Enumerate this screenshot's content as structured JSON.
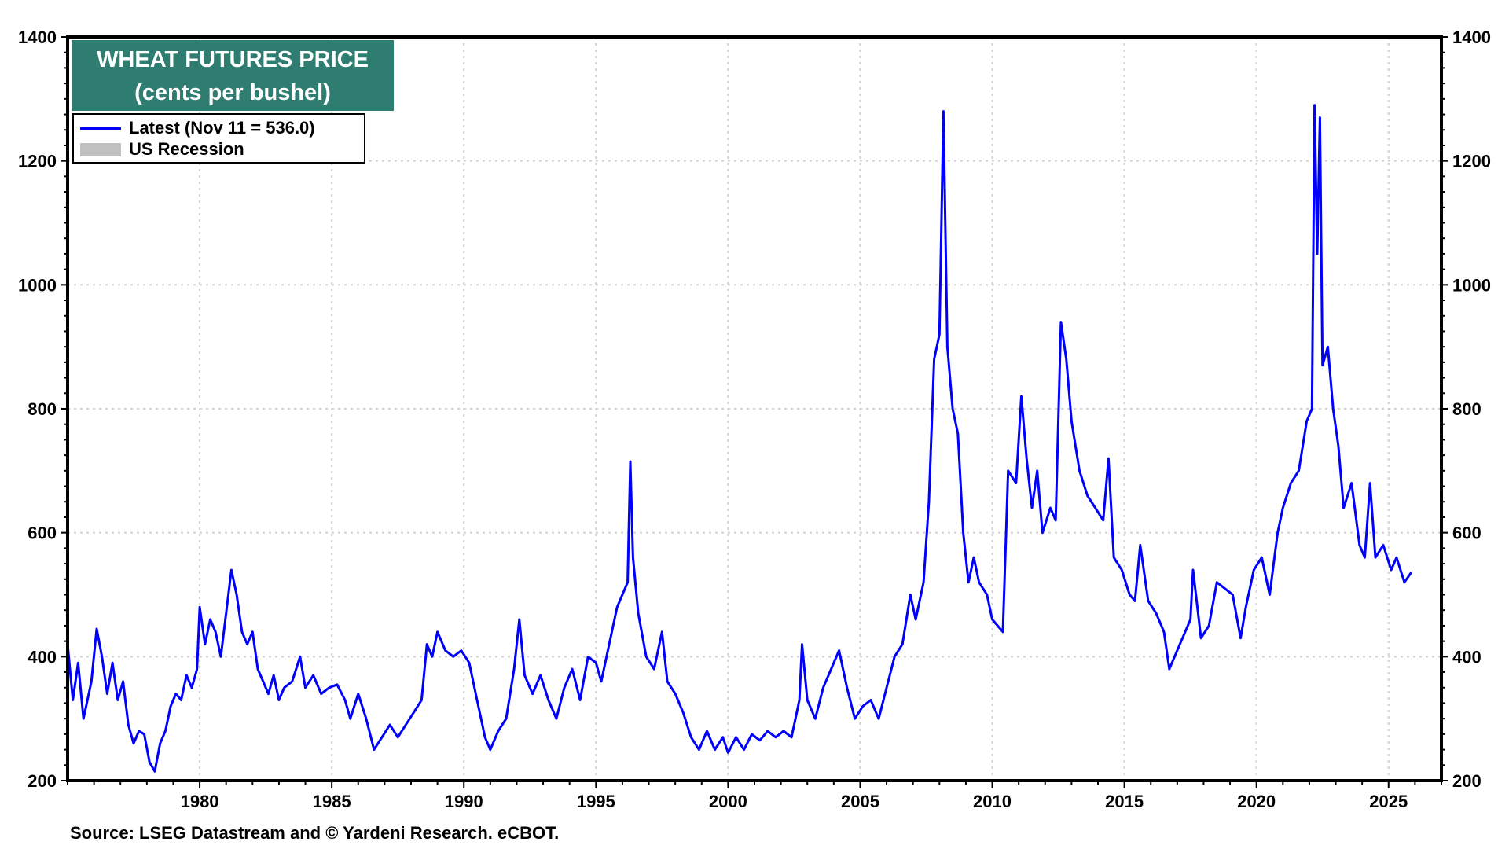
{
  "chart_data": {
    "type": "line",
    "title": "WHEAT FUTURES PRICE",
    "subtitle": "(cents per bushel)",
    "xlim": [
      1975.0,
      2027.0
    ],
    "ylim": [
      200,
      1400
    ],
    "y_ticks": [
      200,
      400,
      600,
      800,
      1000,
      1200,
      1400
    ],
    "x_ticks": [
      1980,
      1985,
      1990,
      1995,
      2000,
      2005,
      2010,
      2015,
      2020,
      2025
    ],
    "grid": true,
    "legend_placement": "top-left",
    "colors": {
      "series": "#0000ff",
      "recession": "#c0c0c0",
      "title_bg": "#2e7d70"
    },
    "legend": [
      {
        "label": "Latest (Nov 11 = 536.0)",
        "kind": "line"
      },
      {
        "label": "US Recession",
        "kind": "patch"
      }
    ],
    "series": [
      {
        "name": "Latest (Nov 11 = 536.0)",
        "points": [
          [
            1975.0,
            420
          ],
          [
            1975.2,
            330
          ],
          [
            1975.4,
            390
          ],
          [
            1975.6,
            300
          ],
          [
            1975.9,
            360
          ],
          [
            1976.1,
            445
          ],
          [
            1976.3,
            400
          ],
          [
            1976.5,
            340
          ],
          [
            1976.7,
            390
          ],
          [
            1976.9,
            330
          ],
          [
            1977.1,
            360
          ],
          [
            1977.3,
            290
          ],
          [
            1977.5,
            260
          ],
          [
            1977.7,
            280
          ],
          [
            1977.9,
            275
          ],
          [
            1978.1,
            230
          ],
          [
            1978.3,
            215
          ],
          [
            1978.5,
            260
          ],
          [
            1978.7,
            280
          ],
          [
            1978.9,
            320
          ],
          [
            1979.1,
            340
          ],
          [
            1979.3,
            330
          ],
          [
            1979.5,
            370
          ],
          [
            1979.7,
            350
          ],
          [
            1979.9,
            380
          ],
          [
            1980.0,
            480
          ],
          [
            1980.2,
            420
          ],
          [
            1980.4,
            460
          ],
          [
            1980.6,
            440
          ],
          [
            1980.8,
            400
          ],
          [
            1981.0,
            470
          ],
          [
            1981.2,
            540
          ],
          [
            1981.4,
            500
          ],
          [
            1981.6,
            440
          ],
          [
            1981.8,
            420
          ],
          [
            1982.0,
            440
          ],
          [
            1982.2,
            380
          ],
          [
            1982.4,
            360
          ],
          [
            1982.6,
            340
          ],
          [
            1982.8,
            370
          ],
          [
            1983.0,
            330
          ],
          [
            1983.2,
            350
          ],
          [
            1983.5,
            360
          ],
          [
            1983.8,
            400
          ],
          [
            1984.0,
            350
          ],
          [
            1984.3,
            370
          ],
          [
            1984.6,
            340
          ],
          [
            1984.9,
            350
          ],
          [
            1985.2,
            355
          ],
          [
            1985.5,
            330
          ],
          [
            1985.7,
            300
          ],
          [
            1986.0,
            340
          ],
          [
            1986.3,
            300
          ],
          [
            1986.6,
            250
          ],
          [
            1986.9,
            270
          ],
          [
            1987.2,
            290
          ],
          [
            1987.5,
            270
          ],
          [
            1987.8,
            290
          ],
          [
            1988.1,
            310
          ],
          [
            1988.4,
            330
          ],
          [
            1988.6,
            420
          ],
          [
            1988.8,
            400
          ],
          [
            1989.0,
            440
          ],
          [
            1989.3,
            410
          ],
          [
            1989.6,
            400
          ],
          [
            1989.9,
            410
          ],
          [
            1990.2,
            390
          ],
          [
            1990.5,
            330
          ],
          [
            1990.8,
            270
          ],
          [
            1991.0,
            250
          ],
          [
            1991.3,
            280
          ],
          [
            1991.6,
            300
          ],
          [
            1991.9,
            380
          ],
          [
            1992.1,
            460
          ],
          [
            1992.3,
            370
          ],
          [
            1992.6,
            340
          ],
          [
            1992.9,
            370
          ],
          [
            1993.2,
            330
          ],
          [
            1993.5,
            300
          ],
          [
            1993.8,
            350
          ],
          [
            1994.1,
            380
          ],
          [
            1994.4,
            330
          ],
          [
            1994.7,
            400
          ],
          [
            1995.0,
            390
          ],
          [
            1995.2,
            360
          ],
          [
            1995.5,
            420
          ],
          [
            1995.8,
            480
          ],
          [
            1996.0,
            500
          ],
          [
            1996.2,
            520
          ],
          [
            1996.3,
            715
          ],
          [
            1996.4,
            560
          ],
          [
            1996.6,
            470
          ],
          [
            1996.9,
            400
          ],
          [
            1997.2,
            380
          ],
          [
            1997.5,
            440
          ],
          [
            1997.7,
            360
          ],
          [
            1998.0,
            340
          ],
          [
            1998.3,
            310
          ],
          [
            1998.6,
            270
          ],
          [
            1998.9,
            250
          ],
          [
            1999.2,
            280
          ],
          [
            1999.5,
            250
          ],
          [
            1999.8,
            270
          ],
          [
            2000.0,
            245
          ],
          [
            2000.3,
            270
          ],
          [
            2000.6,
            250
          ],
          [
            2000.9,
            275
          ],
          [
            2001.2,
            265
          ],
          [
            2001.5,
            280
          ],
          [
            2001.8,
            270
          ],
          [
            2002.1,
            280
          ],
          [
            2002.4,
            270
          ],
          [
            2002.7,
            330
          ],
          [
            2002.8,
            420
          ],
          [
            2003.0,
            330
          ],
          [
            2003.3,
            300
          ],
          [
            2003.6,
            350
          ],
          [
            2003.9,
            380
          ],
          [
            2004.2,
            410
          ],
          [
            2004.5,
            350
          ],
          [
            2004.8,
            300
          ],
          [
            2005.1,
            320
          ],
          [
            2005.4,
            330
          ],
          [
            2005.7,
            300
          ],
          [
            2006.0,
            350
          ],
          [
            2006.3,
            400
          ],
          [
            2006.6,
            420
          ],
          [
            2006.9,
            500
          ],
          [
            2007.1,
            460
          ],
          [
            2007.4,
            520
          ],
          [
            2007.6,
            650
          ],
          [
            2007.8,
            880
          ],
          [
            2008.0,
            920
          ],
          [
            2008.15,
            1280
          ],
          [
            2008.3,
            900
          ],
          [
            2008.5,
            800
          ],
          [
            2008.7,
            760
          ],
          [
            2008.9,
            600
          ],
          [
            2009.1,
            520
          ],
          [
            2009.3,
            560
          ],
          [
            2009.5,
            520
          ],
          [
            2009.8,
            500
          ],
          [
            2010.0,
            460
          ],
          [
            2010.2,
            450
          ],
          [
            2010.4,
            440
          ],
          [
            2010.6,
            700
          ],
          [
            2010.9,
            680
          ],
          [
            2011.1,
            820
          ],
          [
            2011.3,
            720
          ],
          [
            2011.5,
            640
          ],
          [
            2011.7,
            700
          ],
          [
            2011.9,
            600
          ],
          [
            2012.2,
            640
          ],
          [
            2012.4,
            620
          ],
          [
            2012.6,
            940
          ],
          [
            2012.8,
            880
          ],
          [
            2013.0,
            780
          ],
          [
            2013.3,
            700
          ],
          [
            2013.6,
            660
          ],
          [
            2013.9,
            640
          ],
          [
            2014.2,
            620
          ],
          [
            2014.4,
            720
          ],
          [
            2014.6,
            560
          ],
          [
            2014.9,
            540
          ],
          [
            2015.2,
            500
          ],
          [
            2015.4,
            490
          ],
          [
            2015.6,
            580
          ],
          [
            2015.9,
            490
          ],
          [
            2016.2,
            470
          ],
          [
            2016.5,
            440
          ],
          [
            2016.7,
            380
          ],
          [
            2016.9,
            400
          ],
          [
            2017.2,
            430
          ],
          [
            2017.5,
            460
          ],
          [
            2017.6,
            540
          ],
          [
            2017.9,
            430
          ],
          [
            2018.2,
            450
          ],
          [
            2018.5,
            520
          ],
          [
            2018.8,
            510
          ],
          [
            2019.1,
            500
          ],
          [
            2019.4,
            430
          ],
          [
            2019.6,
            480
          ],
          [
            2019.9,
            540
          ],
          [
            2020.2,
            560
          ],
          [
            2020.5,
            500
          ],
          [
            2020.8,
            600
          ],
          [
            2021.0,
            640
          ],
          [
            2021.3,
            680
          ],
          [
            2021.6,
            700
          ],
          [
            2021.9,
            780
          ],
          [
            2022.1,
            800
          ],
          [
            2022.2,
            1290
          ],
          [
            2022.3,
            1050
          ],
          [
            2022.4,
            1270
          ],
          [
            2022.5,
            870
          ],
          [
            2022.7,
            900
          ],
          [
            2022.9,
            800
          ],
          [
            2023.1,
            740
          ],
          [
            2023.3,
            640
          ],
          [
            2023.6,
            680
          ],
          [
            2023.9,
            580
          ],
          [
            2024.1,
            560
          ],
          [
            2024.3,
            680
          ],
          [
            2024.5,
            560
          ],
          [
            2024.8,
            580
          ],
          [
            2025.1,
            540
          ],
          [
            2025.3,
            560
          ],
          [
            2025.6,
            520
          ],
          [
            2025.86,
            536
          ]
        ]
      }
    ],
    "source": "Source: LSEG Datastream and © Yardeni Research. eCBOT."
  }
}
